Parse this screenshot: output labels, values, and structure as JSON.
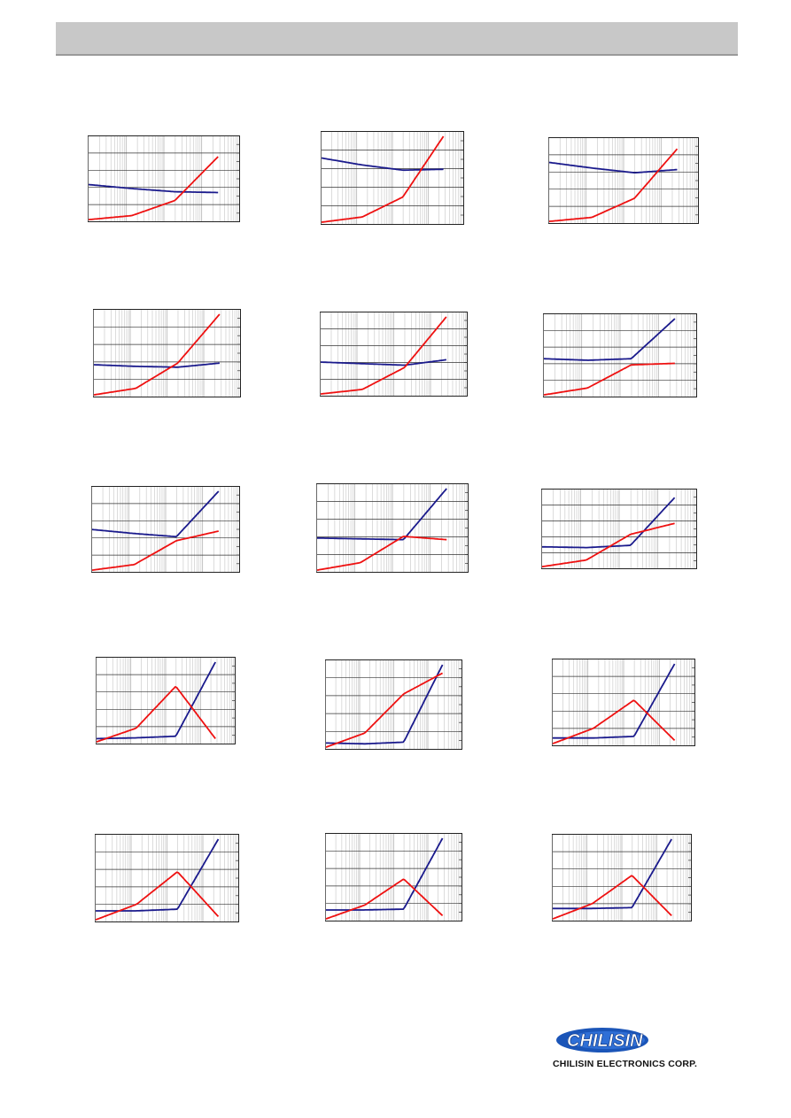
{
  "header": {
    "title": ""
  },
  "company": {
    "logo_text": "CHILISIN",
    "name": "CHILISIN ELECTRONICS CORP."
  },
  "colors": {
    "series_l": "#1a1a8c",
    "series_q": "#ee1111",
    "header_bg": "#c8c8c8"
  },
  "chart_data": [
    {
      "type": "line",
      "x_scale": "log",
      "grid": true,
      "series": [
        {
          "values": [
            {
              "x": 0.001,
              "y": 0.45
            },
            {
              "x": 0.01,
              "y": 0.4
            },
            {
              "x": 0.1,
              "y": 0.36
            },
            {
              "x": 1,
              "y": 0.35
            }
          ]
        },
        {
          "values": [
            {
              "x": 0.001,
              "y": 0.01
            },
            {
              "x": 0.01,
              "y": 0.06
            },
            {
              "x": 0.1,
              "y": 0.25
            },
            {
              "x": 1,
              "y": 0.8
            }
          ]
        }
      ]
    },
    {
      "type": "line",
      "x_scale": "log",
      "grid": true,
      "series": [
        {
          "values": [
            {
              "x": 0.001,
              "y": 0.75
            },
            {
              "x": 0.01,
              "y": 0.67
            },
            {
              "x": 0.1,
              "y": 0.61
            },
            {
              "x": 1,
              "y": 0.62
            }
          ]
        },
        {
          "values": [
            {
              "x": 0.001,
              "y": 0.01
            },
            {
              "x": 0.01,
              "y": 0.07
            },
            {
              "x": 0.1,
              "y": 0.3
            },
            {
              "x": 1,
              "y": 1.0
            }
          ]
        }
      ]
    },
    {
      "type": "line",
      "x_scale": "log",
      "grid": true,
      "series": [
        {
          "values": [
            {
              "x": 0.001,
              "y": 0.75
            },
            {
              "x": 0.01,
              "y": 0.68
            },
            {
              "x": 0.1,
              "y": 0.62
            },
            {
              "x": 1,
              "y": 0.66
            }
          ]
        },
        {
          "values": [
            {
              "x": 0.001,
              "y": 0.01
            },
            {
              "x": 0.01,
              "y": 0.06
            },
            {
              "x": 0.1,
              "y": 0.3
            },
            {
              "x": 1,
              "y": 0.92
            }
          ]
        }
      ]
    },
    {
      "type": "line",
      "x_scale": "log",
      "grid": true,
      "series": [
        {
          "values": [
            {
              "x": 0.001,
              "y": 0.38
            },
            {
              "x": 0.01,
              "y": 0.36
            },
            {
              "x": 0.1,
              "y": 0.35
            },
            {
              "x": 1,
              "y": 0.4
            }
          ]
        },
        {
          "values": [
            {
              "x": 0.001,
              "y": 0.01
            },
            {
              "x": 0.01,
              "y": 0.09
            },
            {
              "x": 0.1,
              "y": 0.4
            },
            {
              "x": 1,
              "y": 1.0
            }
          ]
        }
      ]
    },
    {
      "type": "line",
      "x_scale": "log",
      "grid": true,
      "series": [
        {
          "values": [
            {
              "x": 0.001,
              "y": 0.42
            },
            {
              "x": 0.01,
              "y": 0.4
            },
            {
              "x": 0.1,
              "y": 0.38
            },
            {
              "x": 1,
              "y": 0.45
            }
          ]
        },
        {
          "values": [
            {
              "x": 0.001,
              "y": 0.01
            },
            {
              "x": 0.01,
              "y": 0.07
            },
            {
              "x": 0.1,
              "y": 0.35
            },
            {
              "x": 1,
              "y": 1.0
            }
          ]
        }
      ]
    },
    {
      "type": "line",
      "x_scale": "log",
      "grid": true,
      "series": [
        {
          "values": [
            {
              "x": 0.001,
              "y": 0.48
            },
            {
              "x": 0.01,
              "y": 0.46
            },
            {
              "x": 0.1,
              "y": 0.48
            },
            {
              "x": 1,
              "y": 1.0
            }
          ]
        },
        {
          "values": [
            {
              "x": 0.001,
              "y": 0.01
            },
            {
              "x": 0.01,
              "y": 0.1
            },
            {
              "x": 0.1,
              "y": 0.4
            },
            {
              "x": 1,
              "y": 0.42
            }
          ]
        }
      ]
    },
    {
      "type": "line",
      "x_scale": "log",
      "grid": true,
      "series": [
        {
          "values": [
            {
              "x": 0.001,
              "y": 0.52
            },
            {
              "x": 0.01,
              "y": 0.47
            },
            {
              "x": 0.1,
              "y": 0.43
            },
            {
              "x": 1,
              "y": 1.0
            }
          ]
        },
        {
          "values": [
            {
              "x": 0.001,
              "y": 0.01
            },
            {
              "x": 0.01,
              "y": 0.08
            },
            {
              "x": 0.1,
              "y": 0.38
            },
            {
              "x": 1,
              "y": 0.5
            }
          ]
        }
      ]
    },
    {
      "type": "line",
      "x_scale": "log",
      "grid": true,
      "series": [
        {
          "values": [
            {
              "x": 0.001,
              "y": 0.4
            },
            {
              "x": 0.01,
              "y": 0.39
            },
            {
              "x": 0.1,
              "y": 0.38
            },
            {
              "x": 1,
              "y": 1.0
            }
          ]
        },
        {
          "values": [
            {
              "x": 0.001,
              "y": 0.01
            },
            {
              "x": 0.01,
              "y": 0.1
            },
            {
              "x": 0.1,
              "y": 0.42
            },
            {
              "x": 1,
              "y": 0.38
            }
          ]
        }
      ]
    },
    {
      "type": "line",
      "x_scale": "log",
      "grid": true,
      "series": [
        {
          "values": [
            {
              "x": 0.001,
              "y": 0.28
            },
            {
              "x": 0.01,
              "y": 0.27
            },
            {
              "x": 0.1,
              "y": 0.3
            },
            {
              "x": 1,
              "y": 0.95
            }
          ]
        },
        {
          "values": [
            {
              "x": 0.001,
              "y": 0.01
            },
            {
              "x": 0.01,
              "y": 0.1
            },
            {
              "x": 0.1,
              "y": 0.45
            },
            {
              "x": 1,
              "y": 0.6
            }
          ]
        }
      ]
    },
    {
      "type": "line",
      "x_scale": "log",
      "grid": true,
      "series": [
        {
          "values": [
            {
              "x": 0.001,
              "y": 0.05
            },
            {
              "x": 0.01,
              "y": 0.06
            },
            {
              "x": 0.1,
              "y": 0.08
            },
            {
              "x": 1,
              "y": 1.0
            }
          ]
        },
        {
          "values": [
            {
              "x": 0.001,
              "y": 0.01
            },
            {
              "x": 0.01,
              "y": 0.18
            },
            {
              "x": 0.1,
              "y": 0.7
            },
            {
              "x": 1,
              "y": 0.05
            }
          ]
        }
      ]
    },
    {
      "type": "line",
      "x_scale": "log",
      "grid": true,
      "series": [
        {
          "values": [
            {
              "x": 0.001,
              "y": 0.06
            },
            {
              "x": 0.01,
              "y": 0.05
            },
            {
              "x": 0.1,
              "y": 0.07
            },
            {
              "x": 1,
              "y": 1.0
            }
          ]
        },
        {
          "values": [
            {
              "x": 0.001,
              "y": 0.01
            },
            {
              "x": 0.01,
              "y": 0.18
            },
            {
              "x": 0.1,
              "y": 0.65
            },
            {
              "x": 1,
              "y": 0.9
            }
          ]
        }
      ]
    },
    {
      "type": "line",
      "x_scale": "log",
      "grid": true,
      "series": [
        {
          "values": [
            {
              "x": 0.001,
              "y": 0.08
            },
            {
              "x": 0.01,
              "y": 0.08
            },
            {
              "x": 0.1,
              "y": 0.1
            },
            {
              "x": 1,
              "y": 1.0
            }
          ]
        },
        {
          "values": [
            {
              "x": 0.001,
              "y": 0.01
            },
            {
              "x": 0.01,
              "y": 0.2
            },
            {
              "x": 0.1,
              "y": 0.55
            },
            {
              "x": 1,
              "y": 0.05
            }
          ]
        }
      ]
    },
    {
      "type": "line",
      "x_scale": "log",
      "grid": true,
      "series": [
        {
          "values": [
            {
              "x": 0.001,
              "y": 0.12
            },
            {
              "x": 0.01,
              "y": 0.12
            },
            {
              "x": 0.1,
              "y": 0.14
            },
            {
              "x": 1,
              "y": 1.0
            }
          ]
        },
        {
          "values": [
            {
              "x": 0.001,
              "y": 0.01
            },
            {
              "x": 0.01,
              "y": 0.2
            },
            {
              "x": 0.1,
              "y": 0.6
            },
            {
              "x": 1,
              "y": 0.05
            }
          ]
        }
      ]
    },
    {
      "type": "line",
      "x_scale": "log",
      "grid": true,
      "series": [
        {
          "values": [
            {
              "x": 0.001,
              "y": 0.12
            },
            {
              "x": 0.01,
              "y": 0.12
            },
            {
              "x": 0.1,
              "y": 0.13
            },
            {
              "x": 1,
              "y": 1.0
            }
          ]
        },
        {
          "values": [
            {
              "x": 0.001,
              "y": 0.01
            },
            {
              "x": 0.01,
              "y": 0.18
            },
            {
              "x": 0.1,
              "y": 0.5
            },
            {
              "x": 1,
              "y": 0.05
            }
          ]
        }
      ]
    },
    {
      "type": "line",
      "x_scale": "log",
      "grid": true,
      "series": [
        {
          "values": [
            {
              "x": 0.001,
              "y": 0.14
            },
            {
              "x": 0.01,
              "y": 0.14
            },
            {
              "x": 0.1,
              "y": 0.15
            },
            {
              "x": 1,
              "y": 1.0
            }
          ]
        },
        {
          "values": [
            {
              "x": 0.001,
              "y": 0.01
            },
            {
              "x": 0.01,
              "y": 0.2
            },
            {
              "x": 0.1,
              "y": 0.55
            },
            {
              "x": 1,
              "y": 0.05
            }
          ]
        }
      ]
    }
  ]
}
